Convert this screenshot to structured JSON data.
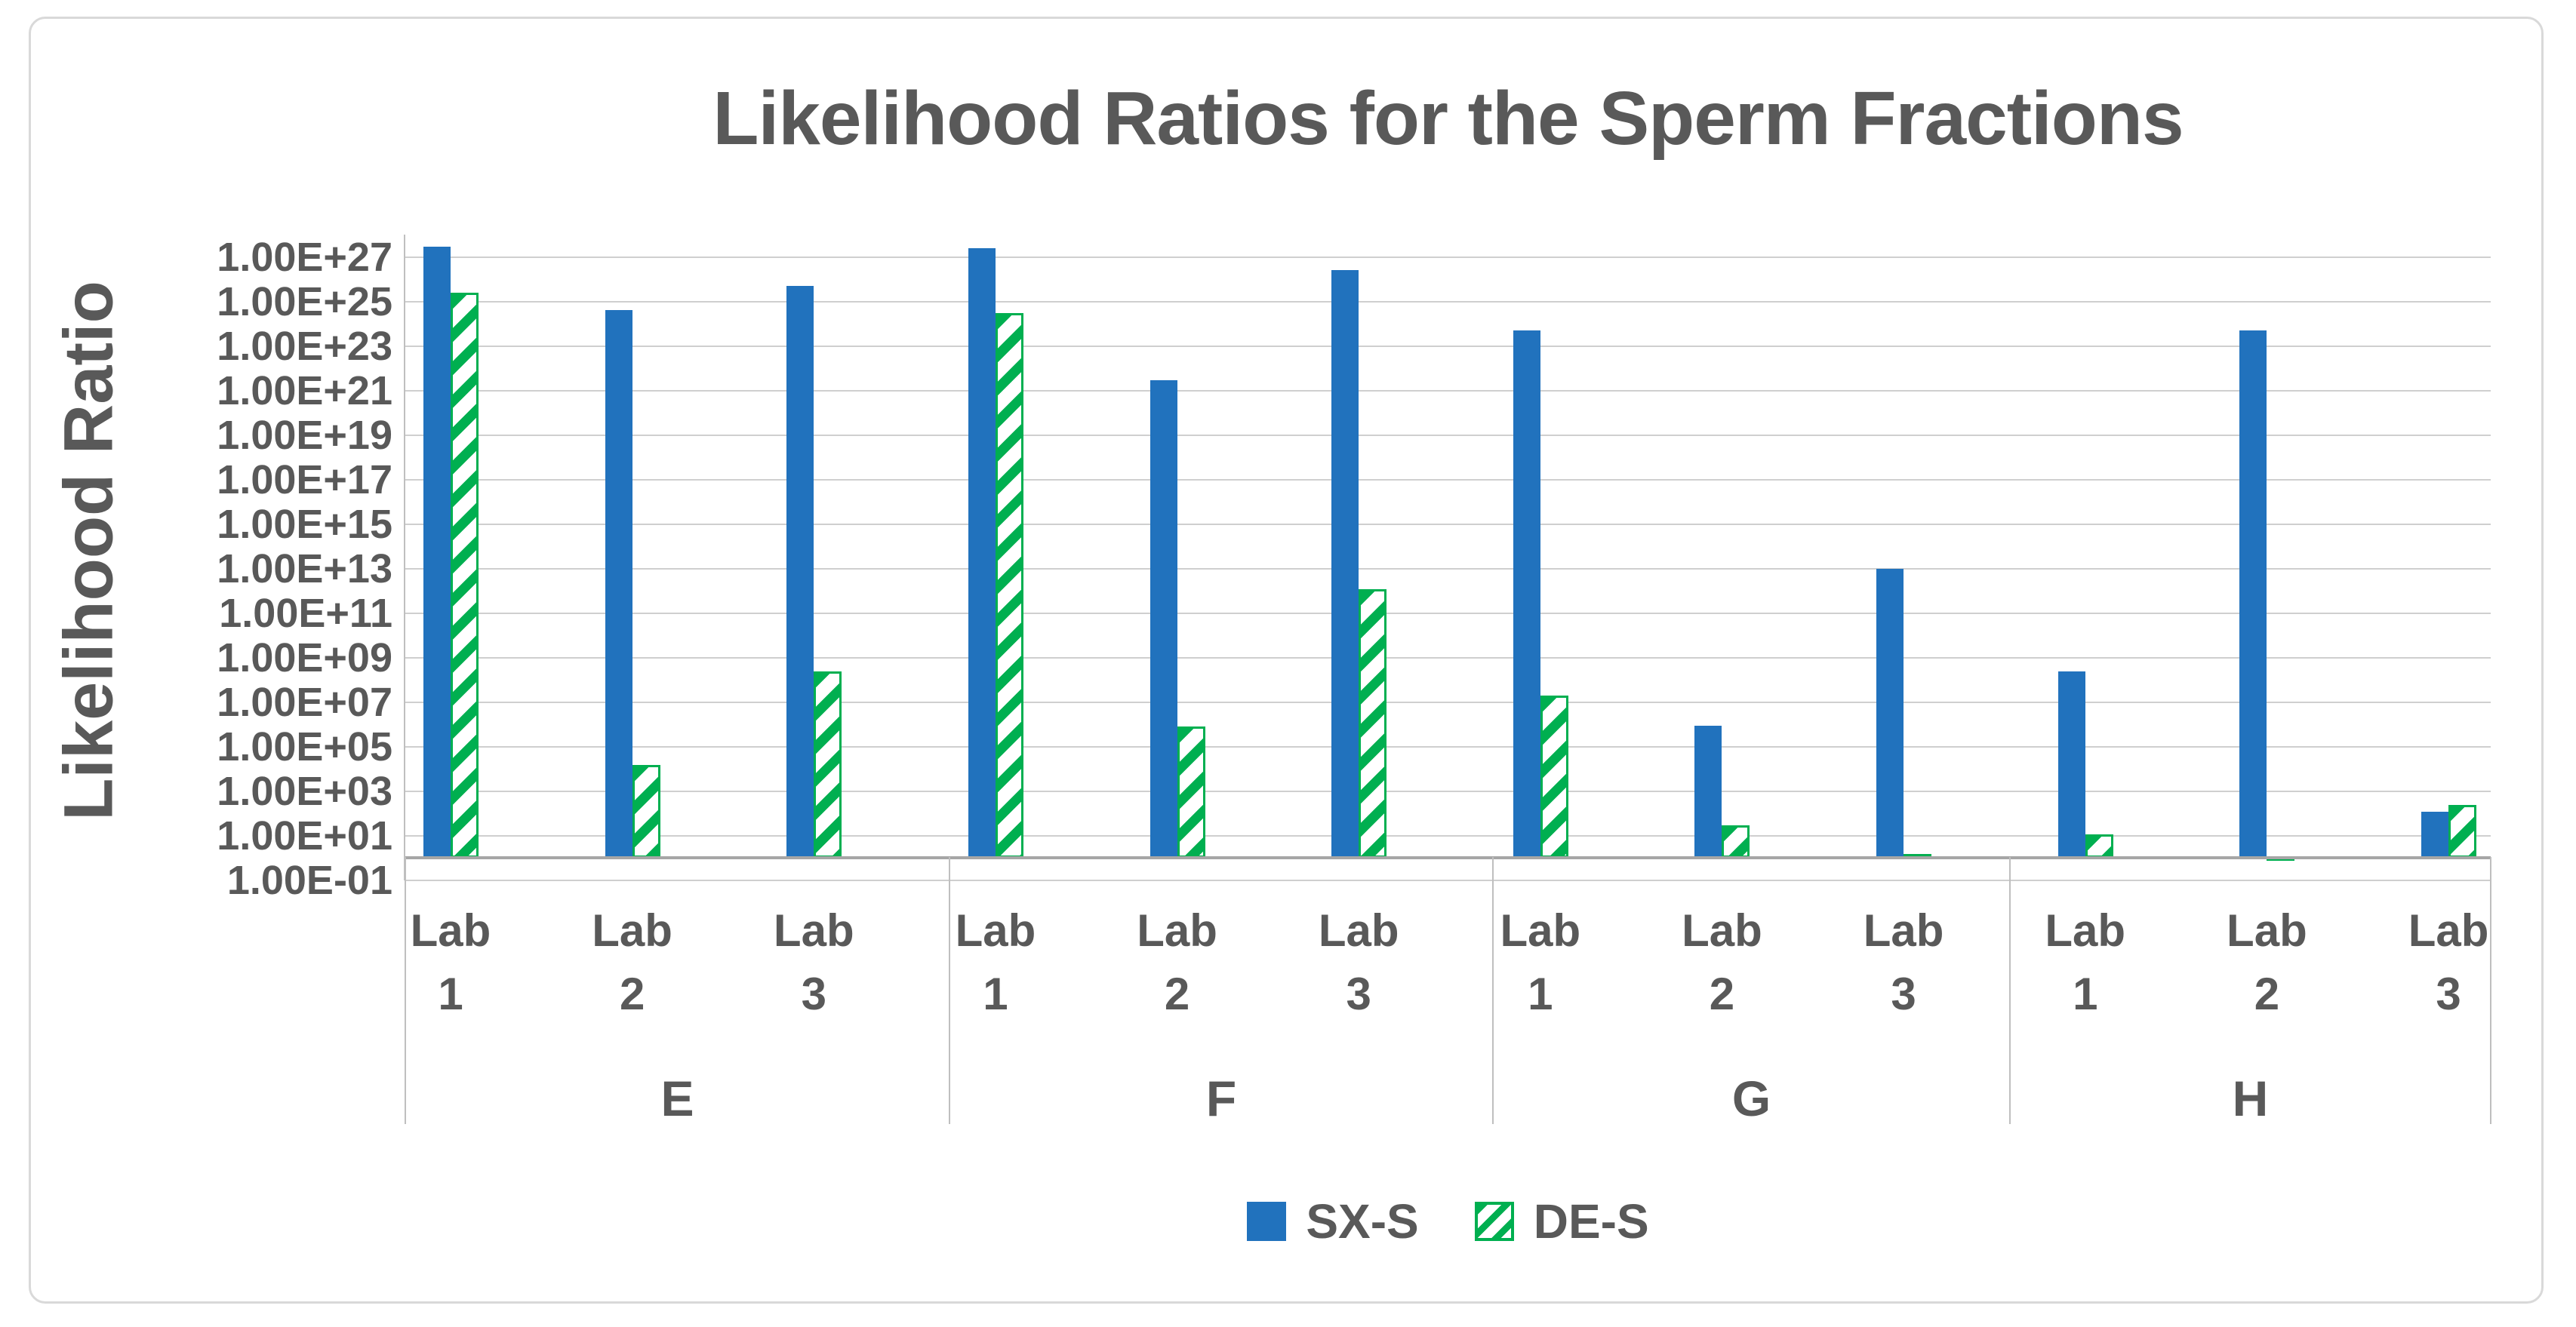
{
  "chart_data": {
    "type": "bar",
    "y_scale": "log",
    "title": "Likelihood Ratios for the Sperm Fractions",
    "ylabel": "Likelihood Ratio",
    "xlabel": "",
    "ylim": [
      "1.00E-01",
      "1.00E+28"
    ],
    "baseline_value": 1,
    "grid": "on",
    "legend_position": "bottom",
    "y_axis_ticks": [
      {
        "label": "1.00E+27",
        "exp": 27
      },
      {
        "label": "1.00E+25",
        "exp": 25
      },
      {
        "label": "1.00E+23",
        "exp": 23
      },
      {
        "label": "1.00E+21",
        "exp": 21
      },
      {
        "label": "1.00E+19",
        "exp": 19
      },
      {
        "label": "1.00E+17",
        "exp": 17
      },
      {
        "label": "1.00E+15",
        "exp": 15
      },
      {
        "label": "1.00E+13",
        "exp": 13
      },
      {
        "label": "1.00E+11",
        "exp": 11
      },
      {
        "label": "1.00E+09",
        "exp": 9
      },
      {
        "label": "1.00E+07",
        "exp": 7
      },
      {
        "label": "1.00E+05",
        "exp": 5
      },
      {
        "label": "1.00E+03",
        "exp": 3
      },
      {
        "label": "1.00E+01",
        "exp": 1
      },
      {
        "label": "1.00E-01",
        "exp": -1
      }
    ],
    "series_names": [
      "SX-S",
      "DE-S"
    ],
    "groups": [
      {
        "label": "E",
        "labs": [
          {
            "label": "Lab 1",
            "values": {
              "SX-S": 2.8e+27,
              "DE-S": 2.5e+25
            }
          },
          {
            "label": "Lab 2",
            "values": {
              "SX-S": 4e+24,
              "DE-S": 15000.0
            }
          },
          {
            "label": "Lab 3",
            "values": {
              "SX-S": 5e+25,
              "DE-S": 250000000.0
            }
          }
        ]
      },
      {
        "label": "F",
        "labs": [
          {
            "label": "Lab 1",
            "values": {
              "SX-S": 2.5e+27,
              "DE-S": 3e+24
            }
          },
          {
            "label": "Lab 2",
            "values": {
              "SX-S": 3e+21,
              "DE-S": 800000.0
            }
          },
          {
            "label": "Lab 3",
            "values": {
              "SX-S": 2.5e+26,
              "DE-S": 1200000000000.0
            }
          }
        ]
      },
      {
        "label": "G",
        "labs": [
          {
            "label": "Lab 1",
            "values": {
              "SX-S": 5e+23,
              "DE-S": 20000000.0
            }
          },
          {
            "label": "Lab 2",
            "values": {
              "SX-S": 900000.0,
              "DE-S": 30
            }
          },
          {
            "label": "Lab 3",
            "values": {
              "SX-S": 10000000000000.0,
              "DE-S": 1.5
            }
          }
        ]
      },
      {
        "label": "H",
        "labs": [
          {
            "label": "Lab 1",
            "values": {
              "SX-S": 250000000.0,
              "DE-S": 12
            }
          },
          {
            "label": "Lab 2",
            "values": {
              "SX-S": 5e+23,
              "DE-S": 1.2
            }
          },
          {
            "label": "Lab 3",
            "values": {
              "SX-S": 120.0,
              "DE-S": 250.0
            }
          }
        ]
      }
    ]
  },
  "legend": [
    {
      "label": "SX-S",
      "pattern": "solid",
      "color": "#2172BD"
    },
    {
      "label": "DE-S",
      "pattern": "hatched",
      "color": "#00AF50"
    }
  ],
  "colors": {
    "sx_blue": "#2172BD",
    "de_green": "#00AF50",
    "gridline": "#CFCFCF",
    "axis_line": "#BFBFBF",
    "baseline": "#A6A6A6",
    "text": "#595959",
    "frame_border": "#D9D9D9"
  }
}
